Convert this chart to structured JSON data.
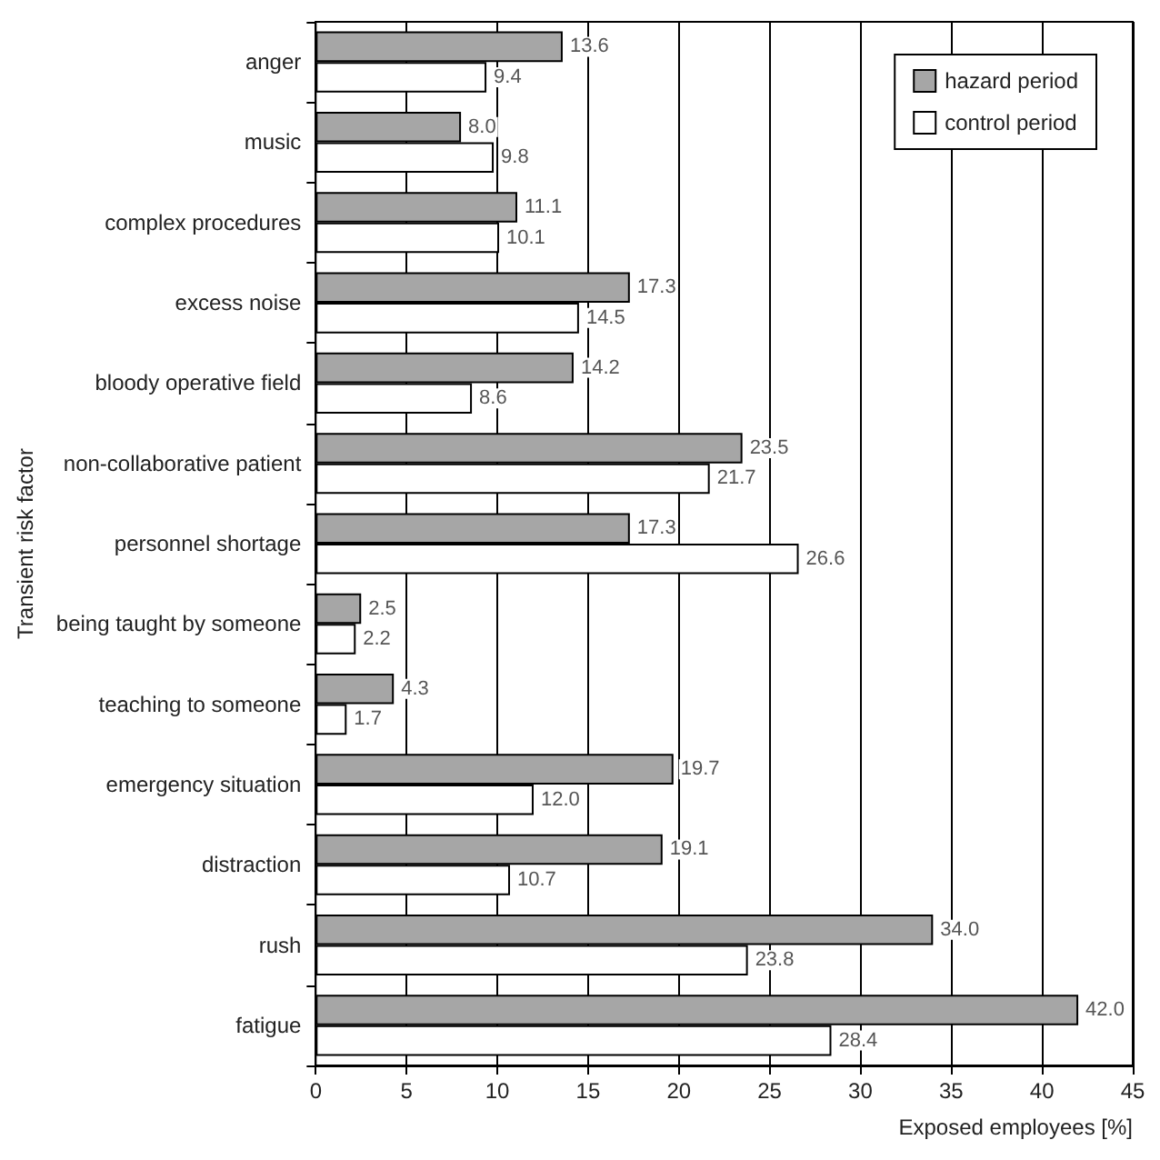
{
  "chart_data": {
    "type": "bar",
    "orientation": "horizontal",
    "ylabel": "Transient risk factor",
    "xlabel": "Exposed employees [%]",
    "categories": [
      "anger",
      "music",
      "complex procedures",
      "excess noise",
      "bloody operative field",
      "non-collaborative patient",
      "personnel shortage",
      "being taught by someone",
      "teaching to someone",
      "emergency situation",
      "distraction",
      "rush",
      "fatigue"
    ],
    "series": [
      {
        "name": "hazard period",
        "color": "#a6a6a6",
        "values": [
          13.6,
          8.0,
          11.1,
          17.3,
          14.2,
          23.5,
          17.3,
          2.5,
          4.3,
          19.7,
          19.1,
          34.0,
          42.0
        ],
        "value_labels": [
          "13.6",
          "8.0",
          "11.1",
          "17.3",
          "14.2",
          "23.5",
          "17.3",
          "2.5",
          "4.3",
          "19.7",
          "19.1",
          "34.0",
          "42.0"
        ]
      },
      {
        "name": "control period",
        "color": "#ffffff",
        "values": [
          9.4,
          9.8,
          10.1,
          14.5,
          8.6,
          21.7,
          26.6,
          2.2,
          1.7,
          12.0,
          10.7,
          23.8,
          28.4
        ],
        "value_labels": [
          "9.4",
          "9.8",
          "10.1",
          "14.5",
          "8.6",
          "21.7",
          "26.6",
          "2.2",
          "1.7",
          "12.0",
          "10.7",
          "23.8",
          "28.4"
        ]
      }
    ],
    "xlim": [
      0,
      45
    ],
    "xticks": [
      0,
      5,
      10,
      15,
      20,
      25,
      30,
      35,
      40,
      45
    ],
    "grid": "x",
    "legend": "top right"
  }
}
